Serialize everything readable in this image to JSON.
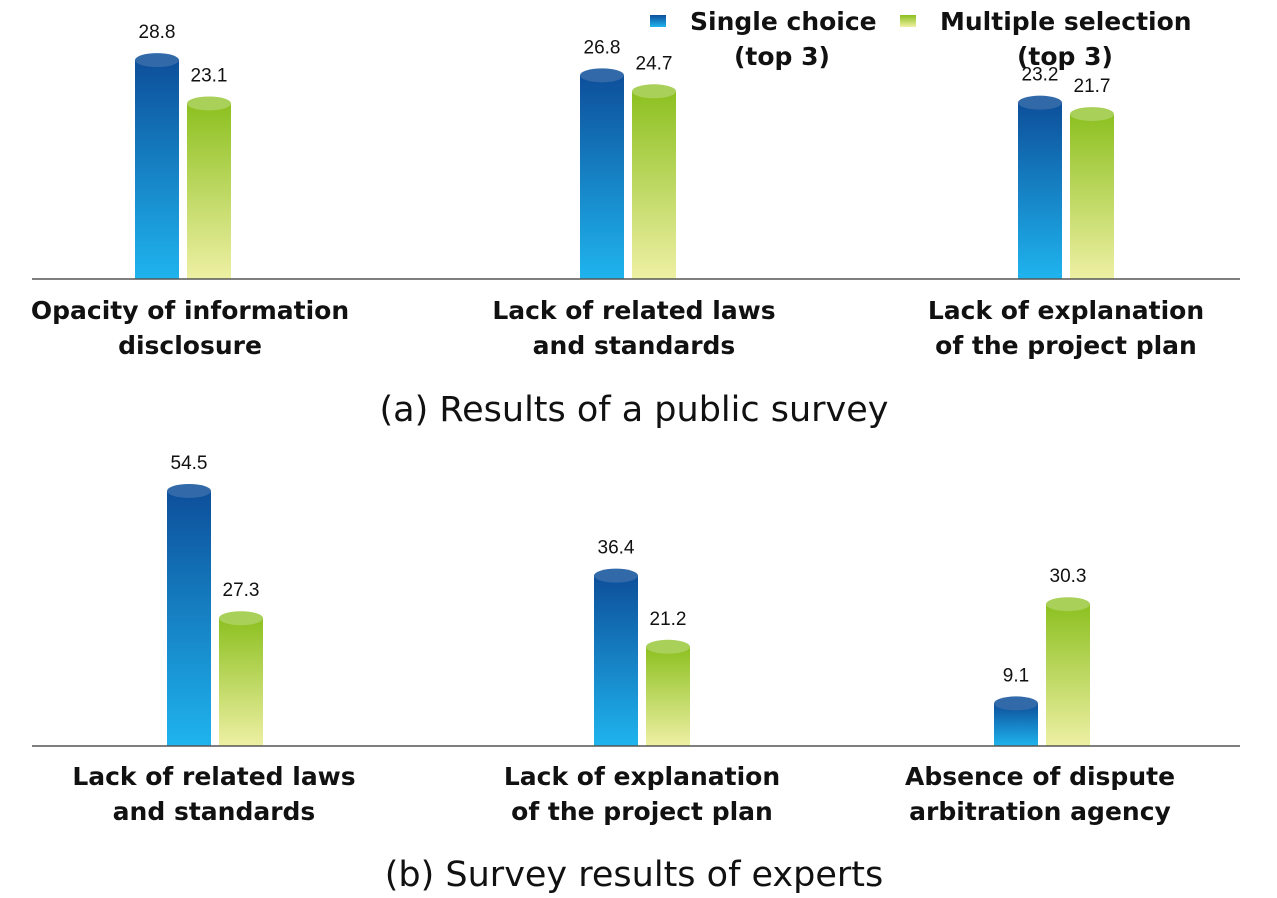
{
  "legend": {
    "single_line1": "Single choice",
    "single_line2": "(top 3)",
    "multiple_line1": "Multiple selection",
    "multiple_line2": "(top 3)"
  },
  "colors": {
    "single_top": "#0d4f9a",
    "single_bottom": "#1fb4ee",
    "multiple_top": "#8cc020",
    "multiple_bottom": "#eef0a4"
  },
  "chart_data": [
    {
      "type": "bar",
      "caption": "(a) Results of a public survey",
      "categories": [
        [
          "Opacity of information",
          "disclosure"
        ],
        [
          "Lack of related laws",
          "and standards"
        ],
        [
          "Lack of explanation",
          "of the project plan"
        ]
      ],
      "series": [
        {
          "name": "Single choice (top 3)",
          "values": [
            28.8,
            26.8,
            23.2
          ],
          "labels": [
            "28.8",
            "26.8",
            "23.2"
          ]
        },
        {
          "name": "Multiple selection (top 3)",
          "values": [
            23.1,
            24.7,
            21.7
          ],
          "labels": [
            "23.1",
            "24.7",
            "21.7"
          ]
        }
      ]
    },
    {
      "type": "bar",
      "caption": "(b) Survey results of experts",
      "categories": [
        [
          "Lack of related laws",
          "and standards"
        ],
        [
          "Lack of explanation",
          "of the project plan"
        ],
        [
          "Absence of dispute",
          "arbitration agency"
        ]
      ],
      "series": [
        {
          "name": "Single choice (top 3)",
          "values": [
            54.5,
            36.4,
            9.1
          ],
          "labels": [
            "54.5",
            "36.4",
            "9.1"
          ]
        },
        {
          "name": "Multiple selection (top 3)",
          "values": [
            27.3,
            21.2,
            30.3
          ],
          "labels": [
            "27.3",
            "21.2",
            "30.3"
          ]
        }
      ]
    }
  ]
}
